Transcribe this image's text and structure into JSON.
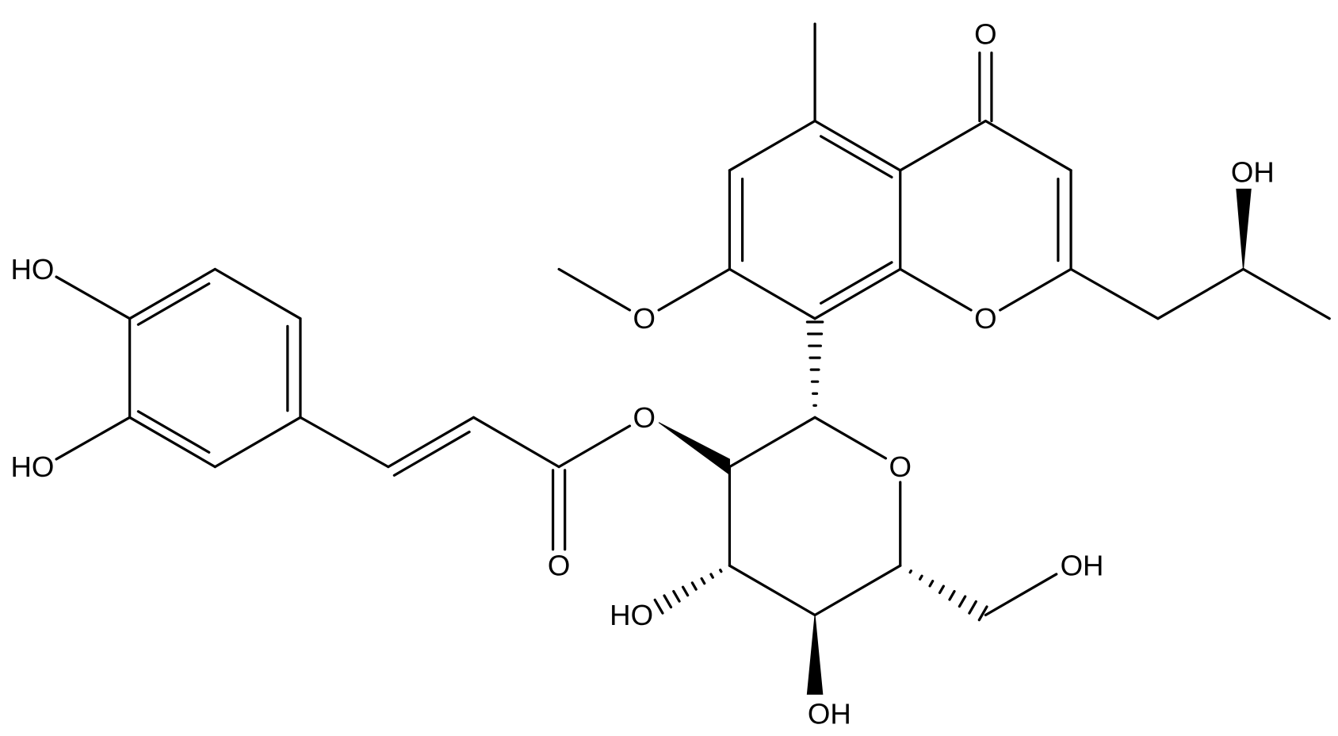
{
  "molecule": {
    "atoms": [
      {
        "label": "O"
      },
      {
        "label": "OH"
      },
      {
        "label": "O"
      },
      {
        "label": "O"
      },
      {
        "label": "O"
      },
      {
        "label": "O"
      },
      {
        "label": "O"
      },
      {
        "label": "HO"
      },
      {
        "label": "HO"
      },
      {
        "label": "HO"
      },
      {
        "label": "OH"
      },
      {
        "label": "OH"
      }
    ]
  }
}
